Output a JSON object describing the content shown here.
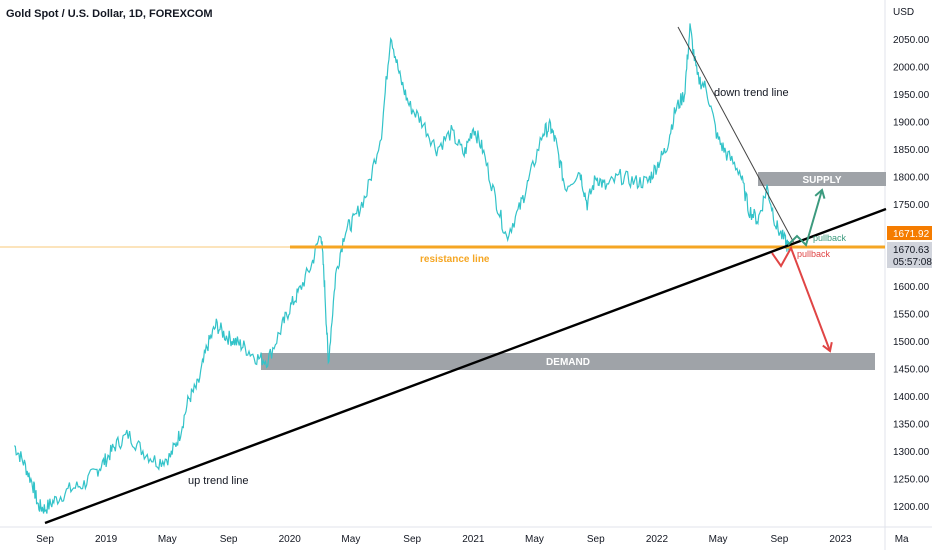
{
  "header": {
    "title": "Gold Spot / U.S. Dollar, 1D, FOREXCOM"
  },
  "axis": {
    "currency": "USD",
    "y_ticks": [
      2050,
      2000,
      1950,
      1900,
      1850,
      1800,
      1750,
      1700,
      1650,
      1600,
      1550,
      1500,
      1450,
      1400,
      1350,
      1300,
      1250,
      1200
    ],
    "y_tick_labels": [
      "2050.00",
      "2000.00",
      "1950.00",
      "1900.00",
      "1850.00",
      "1800.00",
      "1750.00",
      "1700.00",
      "1650.00",
      "1600.00",
      "1550.00",
      "1500.00",
      "1450.00",
      "1400.00",
      "1350.00",
      "1300.00",
      "1250.00",
      "1200.00"
    ],
    "x_ticks": [
      {
        "t": 2018.667,
        "label": "Sep"
      },
      {
        "t": 2019.0,
        "label": "2019"
      },
      {
        "t": 2019.333,
        "label": "May"
      },
      {
        "t": 2019.667,
        "label": "Sep"
      },
      {
        "t": 2020.0,
        "label": "2020"
      },
      {
        "t": 2020.333,
        "label": "May"
      },
      {
        "t": 2020.667,
        "label": "Sep"
      },
      {
        "t": 2021.0,
        "label": "2021"
      },
      {
        "t": 2021.333,
        "label": "May"
      },
      {
        "t": 2021.667,
        "label": "Sep"
      },
      {
        "t": 2022.0,
        "label": "2022"
      },
      {
        "t": 2022.333,
        "label": "May"
      },
      {
        "t": 2022.667,
        "label": "Sep"
      },
      {
        "t": 2023.0,
        "label": "2023"
      },
      {
        "t": 2023.333,
        "label": "Ma"
      }
    ]
  },
  "price_labels": {
    "current_price": "1671.92",
    "bid_price": "1670.63",
    "countdown": "05:57:08"
  },
  "annotations": {
    "supply": "SUPPLY",
    "demand": "DEMAND",
    "resistance": "resistance line",
    "down_trend": "down trend line",
    "up_trend": "up trend line",
    "pullback_up": "pullback",
    "pullback_down": "pullback"
  },
  "colors": {
    "price_line": "#33c3c9",
    "resistance": "#f5a623",
    "zone": "#9fa3a8",
    "up_arrow": "#3c9a7e",
    "down_arrow": "#e04545",
    "price_badge": "#f57c00",
    "trendline": "#000000",
    "down_trendline": "#444444"
  },
  "chart_data": {
    "type": "line",
    "title": "Gold Spot / U.S. Dollar, 1D, FOREXCOM",
    "ylabel": "USD",
    "ylim": [
      1170,
      2080
    ],
    "xlim": [
      2018.5,
      2023.333
    ],
    "series": [
      {
        "x": [
          2018.5,
          2018.55,
          2018.6,
          2018.63,
          2018.667,
          2018.72,
          2018.8,
          2018.88,
          2018.95,
          2019.0,
          2019.05,
          2019.12,
          2019.2,
          2019.28,
          2019.35,
          2019.4,
          2019.45,
          2019.5,
          2019.55,
          2019.6,
          2019.65,
          2019.7,
          2019.75,
          2019.82,
          2019.88,
          2019.95,
          2020.0,
          2020.05,
          2020.12,
          2020.17,
          2020.19,
          2020.21,
          2020.25,
          2020.3,
          2020.35,
          2020.42,
          2020.5,
          2020.55,
          2020.6,
          2020.65,
          2020.72,
          2020.8,
          2020.88,
          2020.95,
          2021.0,
          2021.05,
          2021.12,
          2021.18,
          2021.25,
          2021.3,
          2021.38,
          2021.42,
          2021.45,
          2021.5,
          2021.58,
          2021.62,
          2021.67,
          2021.72,
          2021.8,
          2021.88,
          2021.95,
          2022.0,
          2022.05,
          2022.1,
          2022.15,
          2022.18,
          2022.22,
          2022.27,
          2022.33,
          2022.38,
          2022.45,
          2022.5,
          2022.55,
          2022.6,
          2022.65,
          2022.7,
          2022.72
        ],
        "y": [
          1310,
          1280,
          1240,
          1200,
          1195,
          1210,
          1230,
          1240,
          1265,
          1285,
          1310,
          1330,
          1300,
          1280,
          1290,
          1330,
          1395,
          1420,
          1490,
          1530,
          1510,
          1500,
          1490,
          1470,
          1465,
          1520,
          1560,
          1590,
          1640,
          1700,
          1600,
          1460,
          1620,
          1700,
          1720,
          1770,
          1880,
          2060,
          1980,
          1930,
          1900,
          1850,
          1880,
          1840,
          1890,
          1850,
          1760,
          1690,
          1740,
          1790,
          1880,
          1890,
          1860,
          1780,
          1810,
          1750,
          1800,
          1780,
          1800,
          1790,
          1790,
          1820,
          1850,
          1920,
          1950,
          2070,
          1980,
          1960,
          1870,
          1840,
          1810,
          1740,
          1720,
          1780,
          1710,
          1680,
          1668
        ]
      }
    ]
  }
}
